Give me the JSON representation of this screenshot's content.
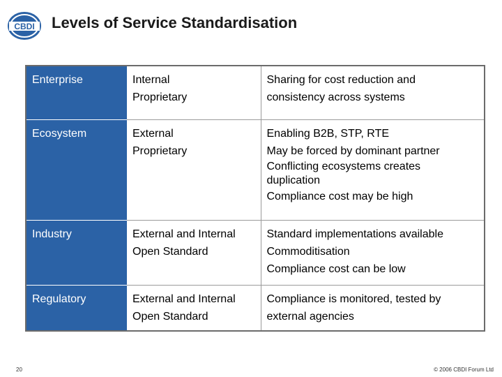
{
  "logo": {
    "text": "CBDI",
    "color": "#2b62a6"
  },
  "title": "Levels of Service Standardisation",
  "rows": [
    {
      "level": "Enterprise",
      "scope": [
        "Internal",
        "Proprietary"
      ],
      "description": [
        "Sharing for cost reduction and",
        "consistency across systems"
      ]
    },
    {
      "level": "Ecosystem",
      "scope": [
        "External",
        "Proprietary"
      ],
      "description": [
        "Enabling B2B, STP, RTE",
        "May be forced by dominant partner",
        "Conflicting ecosystems creates",
        "duplication",
        "Compliance cost may be high"
      ]
    },
    {
      "level": "Industry",
      "scope": [
        "External and Internal",
        "Open Standard"
      ],
      "description": [
        "Standard implementations available",
        "Commoditisation",
        "Compliance cost can be low"
      ]
    },
    {
      "level": "Regulatory",
      "scope": [
        "External and Internal",
        "Open Standard"
      ],
      "description": [
        "Compliance is monitored, tested by",
        "external agencies"
      ]
    }
  ],
  "footer": {
    "page_number": "20",
    "copyright": "© 2006 CBDI Forum Ltd"
  },
  "colors": {
    "accent": "#2b62a6",
    "border": "#6b6b6b"
  }
}
